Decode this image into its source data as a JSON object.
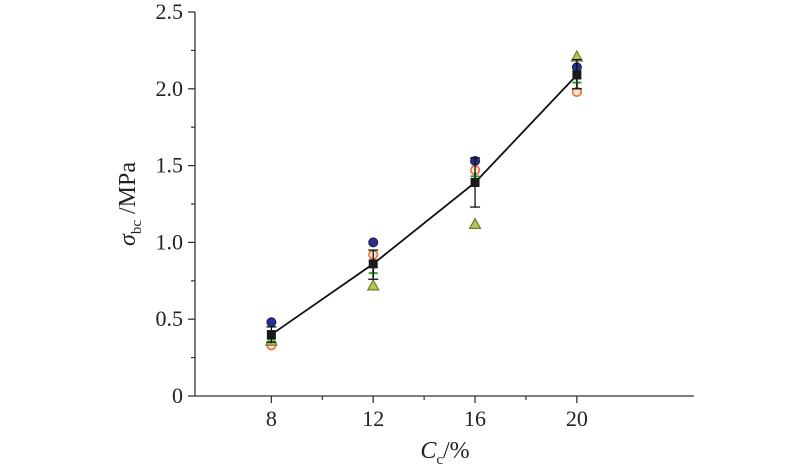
{
  "chart_data": {
    "type": "scatter",
    "xlabel": {
      "main": "C",
      "sub": "c",
      "suffix": "/%"
    },
    "ylabel": {
      "main": "σ",
      "sub": "bc",
      "suffix": " /MPa"
    },
    "xlim": [
      5,
      24.6
    ],
    "ylim": [
      0,
      2.5
    ],
    "x_ticks": [
      8,
      12,
      16,
      20
    ],
    "y_ticks": [
      0,
      0.5,
      1.0,
      1.5,
      2.0,
      2.5
    ],
    "y_tick_labels": [
      "0",
      "0.5",
      "1.0",
      "1.5",
      "2.0",
      "2.5"
    ],
    "grid": false,
    "mean_series": {
      "marker": "square",
      "color": "#1a1a1a",
      "x": [
        8,
        12,
        16,
        20
      ],
      "y": [
        0.4,
        0.86,
        1.39,
        2.09
      ],
      "err_low": [
        0.35,
        0.76,
        1.23,
        2.0
      ],
      "err_high": [
        0.45,
        0.95,
        1.55,
        2.19
      ]
    },
    "series": [
      {
        "marker": "circle",
        "color": "#2b2f8c",
        "points": [
          [
            8,
            0.48
          ],
          [
            12,
            1.0
          ],
          [
            16,
            1.53
          ],
          [
            20,
            2.14
          ]
        ]
      },
      {
        "marker": "circle-open",
        "color": "#e8703a",
        "points": [
          [
            8,
            0.33
          ],
          [
            12,
            0.92
          ],
          [
            16,
            1.47
          ],
          [
            20,
            1.98
          ]
        ]
      },
      {
        "marker": "triangle",
        "color": "#6b7a1e",
        "points": [
          [
            8,
            0.36
          ],
          [
            12,
            0.72
          ],
          [
            16,
            1.12
          ],
          [
            20,
            2.21
          ]
        ]
      },
      {
        "marker": "star",
        "color": "#2e9e3a",
        "points": [
          [
            8,
            0.37
          ],
          [
            12,
            0.8
          ],
          [
            16,
            1.43
          ],
          [
            20,
            2.04
          ]
        ]
      }
    ]
  }
}
